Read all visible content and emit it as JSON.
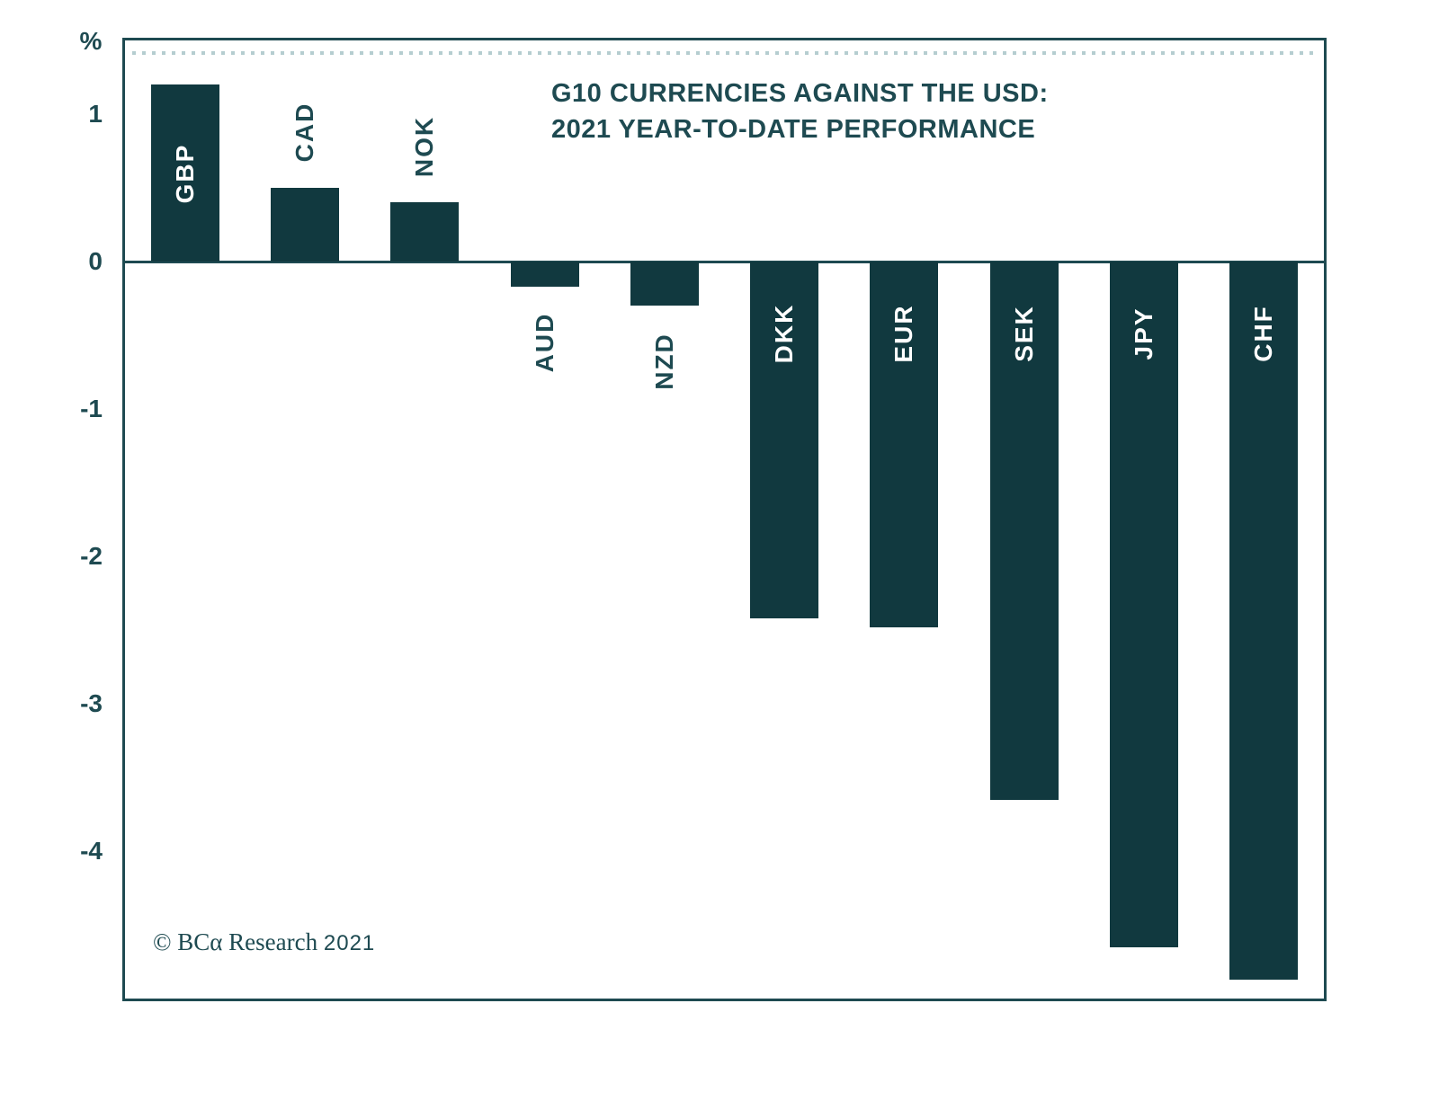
{
  "chart_data": {
    "type": "bar",
    "title_lines": [
      "G10 CURRENCIES AGAINST THE USD:",
      "2021 YEAR-TO-DATE PERFORMANCE"
    ],
    "unit_label": "%",
    "categories": [
      "GBP",
      "CAD",
      "NOK",
      "AUD",
      "NZD",
      "DKK",
      "EUR",
      "SEK",
      "JPY",
      "CHF"
    ],
    "values": [
      1.2,
      0.5,
      0.4,
      -0.17,
      -0.3,
      -2.42,
      -2.48,
      -3.65,
      -4.65,
      -4.87
    ],
    "label_placement": [
      "inside",
      "above",
      "above",
      "below",
      "below",
      "inside",
      "inside",
      "inside",
      "inside",
      "inside"
    ],
    "yticks": [
      1,
      0,
      -1,
      -2,
      -3,
      -4
    ],
    "ylim": [
      -5.0,
      1.5
    ],
    "grid": "off",
    "legend": "none",
    "bar_color": "#11393f",
    "ink_color": "#1e4a51",
    "source_note": {
      "serif_part": "© BCα Research",
      "year_part": "2021"
    }
  }
}
